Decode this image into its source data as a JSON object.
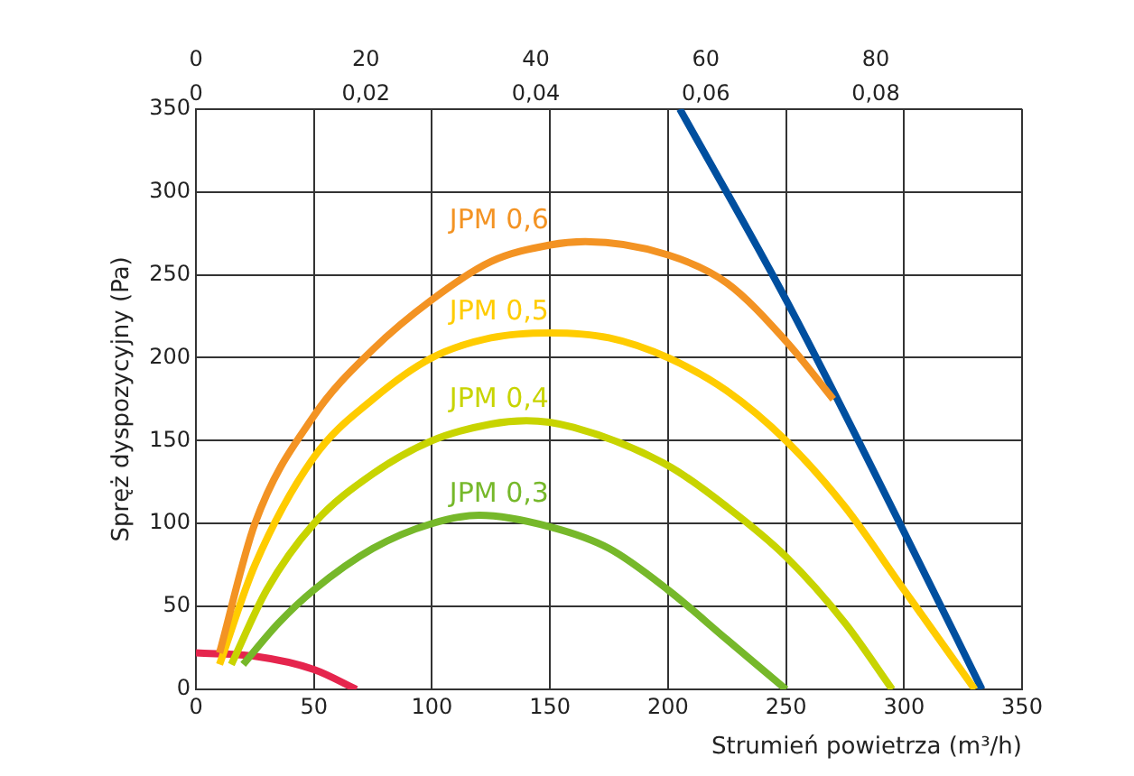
{
  "chart_data": {
    "type": "line",
    "xlabel": "Strumień powietrza (m³/h)",
    "ylabel": "Spręż dyspozycyjny (Pa)",
    "xlim": [
      0,
      350
    ],
    "xticks": [
      0,
      50,
      100,
      150,
      200,
      250,
      300,
      350
    ],
    "ylim": [
      0,
      350
    ],
    "yticks": [
      0,
      50,
      100,
      150,
      200,
      250,
      300,
      350
    ],
    "x2lim": [
      0,
      97.22
    ],
    "x2ticks": [
      0,
      20,
      40,
      60,
      80
    ],
    "annotations": [
      "0",
      "0,02",
      "0,04",
      "0,06",
      "0,08"
    ],
    "grid": true,
    "legend": false,
    "marker": "none",
    "line_style": "solid",
    "series": [
      {
        "name": "JPM 0,6",
        "color": "#f39323",
        "x": [
          10,
          25,
          50,
          75,
          100,
          125,
          150,
          165,
          200,
          225,
          250,
          270
        ],
        "values": [
          22,
          100,
          165,
          205,
          235,
          258,
          268,
          270,
          262,
          245,
          210,
          175
        ]
      },
      {
        "name": "JPM 0,5",
        "color": "#ffcc00",
        "x": [
          10,
          25,
          50,
          75,
          100,
          125,
          150,
          175,
          200,
          225,
          250,
          275,
          300,
          330
        ],
        "values": [
          15,
          75,
          140,
          175,
          200,
          212,
          215,
          212,
          200,
          180,
          150,
          110,
          60,
          0
        ]
      },
      {
        "name": "JPM 0,4",
        "color": "#c8d400",
        "x": [
          15,
          30,
          50,
          75,
          100,
          125,
          140,
          160,
          200,
          225,
          250,
          275,
          295
        ],
        "values": [
          15,
          60,
          100,
          130,
          150,
          160,
          162,
          158,
          135,
          110,
          80,
          40,
          0
        ]
      },
      {
        "name": "JPM 0,3",
        "color": "#76b82a",
        "x": [
          20,
          35,
          50,
          75,
          100,
          120,
          150,
          175,
          200,
          225,
          250
        ],
        "values": [
          15,
          40,
          60,
          85,
          100,
          105,
          98,
          85,
          60,
          30,
          0
        ]
      },
      {
        "color": "#e5254d",
        "x": [
          0,
          25,
          50,
          68
        ],
        "values": [
          22,
          20,
          12,
          0
        ]
      },
      {
        "color": "#004f9f",
        "x": [
          205,
          250,
          300,
          333
        ],
        "values": [
          350,
          235,
          95,
          0
        ]
      }
    ]
  }
}
